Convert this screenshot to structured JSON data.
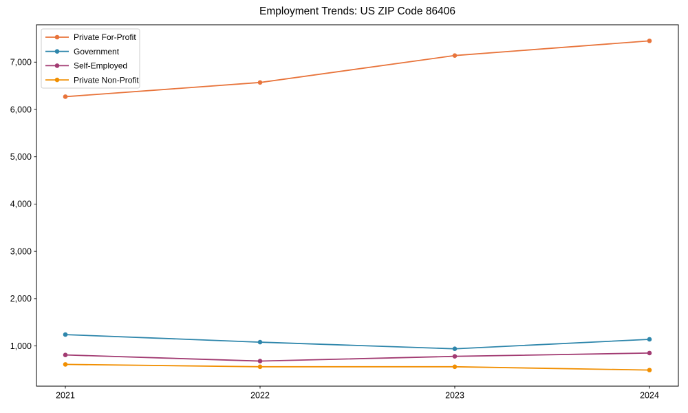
{
  "chart_data": {
    "type": "line",
    "title": "Employment Trends: US ZIP Code 86406",
    "x": [
      2021,
      2022,
      2023,
      2024
    ],
    "x_labels": [
      "2021",
      "2022",
      "2023",
      "2024"
    ],
    "series": [
      {
        "name": "Private For-Profit",
        "color": "#E8743B",
        "values": [
          6270,
          6570,
          7140,
          7450
        ]
      },
      {
        "name": "Government",
        "color": "#2E86AB",
        "values": [
          1240,
          1080,
          940,
          1140
        ]
      },
      {
        "name": "Self-Employed",
        "color": "#A23B72",
        "values": [
          810,
          680,
          780,
          850
        ]
      },
      {
        "name": "Private Non-Profit",
        "color": "#F18F01",
        "values": [
          610,
          560,
          560,
          490
        ]
      }
    ],
    "y_ticks": [
      {
        "value": 1000,
        "label": "1,000"
      },
      {
        "value": 2000,
        "label": "2,000"
      },
      {
        "value": 3000,
        "label": "3,000"
      },
      {
        "value": 4000,
        "label": "4,000"
      },
      {
        "value": 5000,
        "label": "5,000"
      },
      {
        "value": 6000,
        "label": "6,000"
      },
      {
        "value": 7000,
        "label": "7,000"
      }
    ],
    "ylim": [
      150,
      7790
    ],
    "xlabel": "",
    "ylabel": "",
    "grid": false,
    "legend_position": "upper left",
    "marker": "circle",
    "axis_color": "#000000",
    "legend_border_color": "#cccccc",
    "background_color": "#ffffff"
  }
}
